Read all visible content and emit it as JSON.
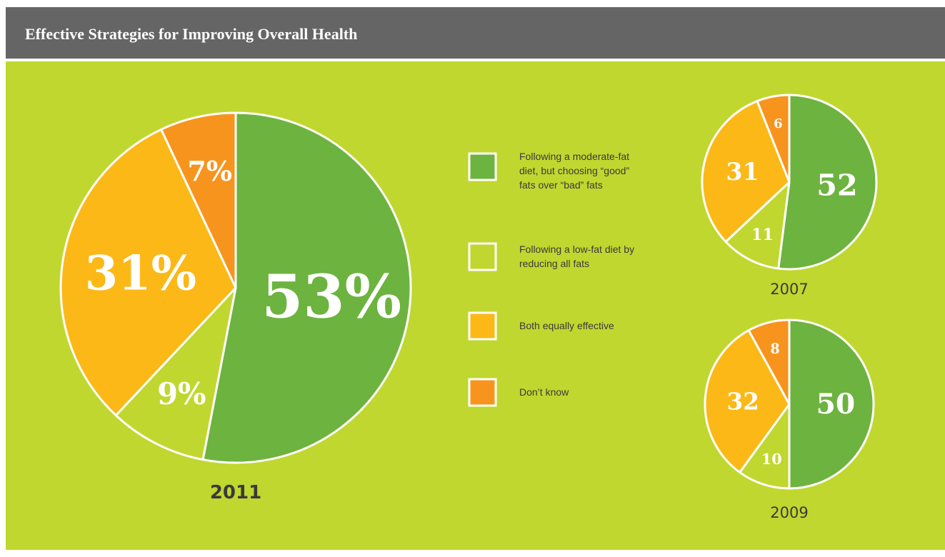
{
  "title": "Effective Strategies for Improving Overall Health",
  "legend": {
    "items": [
      {
        "name": "Following a moderate-fat diet, but choosing “good” fats over “bad” fats",
        "color": "#6db33f"
      },
      {
        "name": "Following a low-fat diet by reducing all fats",
        "color": "#c0d72f"
      },
      {
        "name": "Both equally effective",
        "color": "#fbb817"
      },
      {
        "name": "Don’t know",
        "color": "#f7941d"
      }
    ]
  },
  "chart_data": [
    {
      "type": "pie",
      "title": "2011",
      "values": [
        53,
        9,
        31,
        7
      ],
      "value_labels": [
        "53%",
        "9%",
        "31%",
        "7%"
      ]
    },
    {
      "type": "pie",
      "title": "2007",
      "values": [
        52,
        11,
        31,
        6
      ]
    },
    {
      "type": "pie",
      "title": "2009",
      "values": [
        50,
        10,
        32,
        8
      ]
    }
  ]
}
